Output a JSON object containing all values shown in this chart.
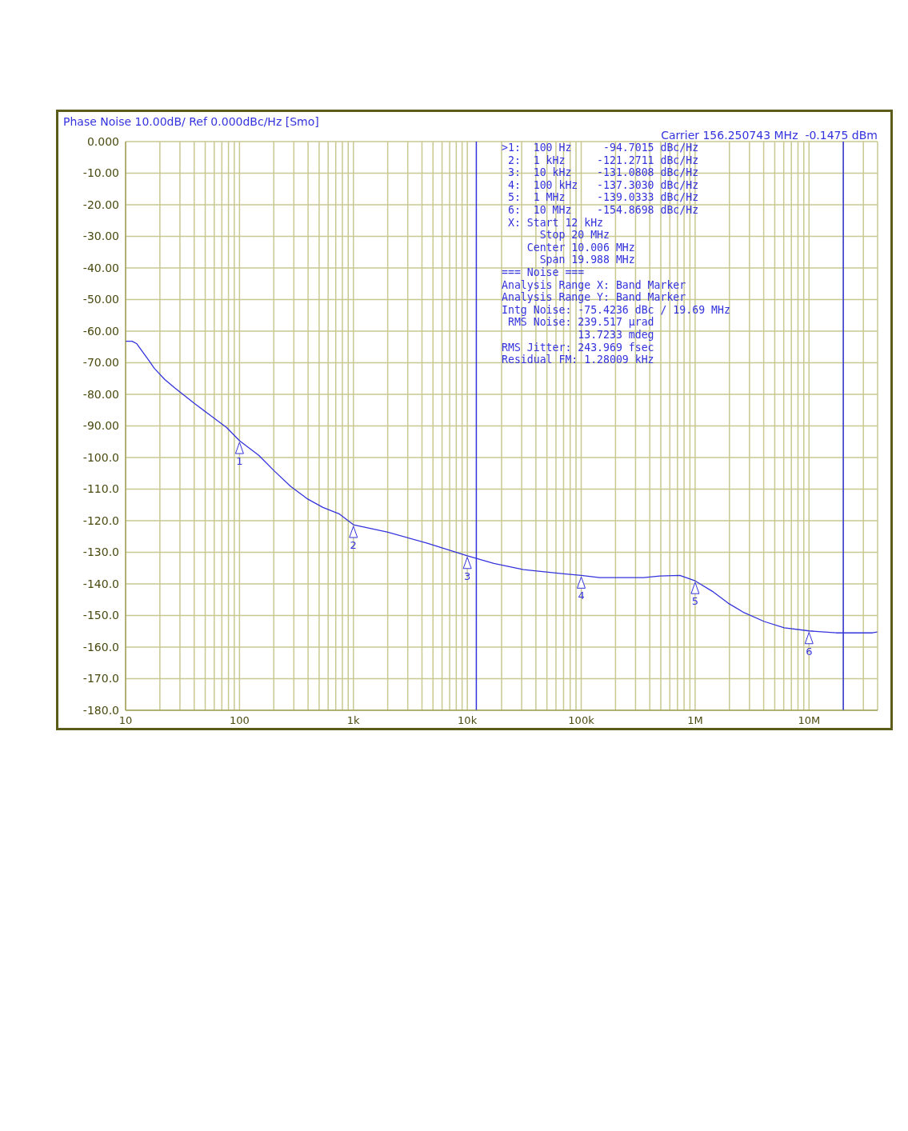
{
  "chart_data": {
    "type": "line",
    "title": "Phase Noise 10.00dB/ Ref 0.000dBc/Hz [Smo]",
    "subtitle": "Carrier 156.250743 MHz  -0.1475 dBm",
    "log": "x",
    "grid": true,
    "x": [
      10,
      11.4,
      12.55,
      14.06,
      16,
      17.9,
      22.1,
      26.9,
      40.3,
      55.7,
      77.1,
      100,
      147.6,
      204,
      282,
      391,
      540,
      747,
      1000,
      1977,
      4446,
      10000,
      17070,
      31100,
      70000,
      100000,
      145000,
      354000,
      490000,
      734000,
      1000000,
      1410000,
      1950000,
      2690000,
      4040000,
      6050000,
      10000000,
      17300000,
      36000000,
      39700000
    ],
    "series": [
      {
        "color": "#3333dd",
        "values": [
          -63.2,
          -63.2,
          -64,
          -66.5,
          -69.3,
          -71.8,
          -75.3,
          -77.9,
          -82.9,
          -86.7,
          -90.5,
          -94.7015,
          -99.3,
          -104.4,
          -109.2,
          -113,
          -115.8,
          -117.8,
          -121.2711,
          -123.6,
          -127.1,
          -131.0808,
          -133.5,
          -135.5,
          -136.8,
          -137.303,
          -138,
          -138,
          -137.5,
          -137.3,
          -139.0333,
          -142.3,
          -146.1,
          -149.1,
          -151.9,
          -153.9,
          -154.8698,
          -155.5,
          -155.5,
          -155.2
        ]
      }
    ],
    "xlim": [
      10,
      40000000
    ],
    "xticks": [
      {
        "value": 10,
        "label": "10"
      },
      {
        "value": 20,
        "label": null
      },
      {
        "value": 30,
        "label": null
      },
      {
        "value": 40,
        "label": null
      },
      {
        "value": 50,
        "label": null
      },
      {
        "value": 60,
        "label": null
      },
      {
        "value": 70,
        "label": null
      },
      {
        "value": 80,
        "label": null
      },
      {
        "value": 90,
        "label": null
      },
      {
        "value": 100,
        "label": "100"
      },
      {
        "value": 200,
        "label": null
      },
      {
        "value": 300,
        "label": null
      },
      {
        "value": 400,
        "label": null
      },
      {
        "value": 500,
        "label": null
      },
      {
        "value": 600,
        "label": null
      },
      {
        "value": 700,
        "label": null
      },
      {
        "value": 800,
        "label": null
      },
      {
        "value": 900,
        "label": null
      },
      {
        "value": 1000,
        "label": "1k"
      },
      {
        "value": 2000,
        "label": null
      },
      {
        "value": 3000,
        "label": null
      },
      {
        "value": 4000,
        "label": null
      },
      {
        "value": 5000,
        "label": null
      },
      {
        "value": 6000,
        "label": null
      },
      {
        "value": 7000,
        "label": null
      },
      {
        "value": 8000,
        "label": null
      },
      {
        "value": 9000,
        "label": null
      },
      {
        "value": 10000,
        "label": "10k"
      },
      {
        "value": 20000,
        "label": null
      },
      {
        "value": 30000,
        "label": null
      },
      {
        "value": 40000,
        "label": null
      },
      {
        "value": 50000,
        "label": null
      },
      {
        "value": 60000,
        "label": null
      },
      {
        "value": 70000,
        "label": null
      },
      {
        "value": 80000,
        "label": null
      },
      {
        "value": 90000,
        "label": null
      },
      {
        "value": 100000,
        "label": "100k"
      },
      {
        "value": 200000,
        "label": null
      },
      {
        "value": 300000,
        "label": null
      },
      {
        "value": 400000,
        "label": null
      },
      {
        "value": 500000,
        "label": null
      },
      {
        "value": 600000,
        "label": null
      },
      {
        "value": 700000,
        "label": null
      },
      {
        "value": 800000,
        "label": null
      },
      {
        "value": 900000,
        "label": null
      },
      {
        "value": 1000000,
        "label": "1M"
      },
      {
        "value": 2000000,
        "label": null
      },
      {
        "value": 3000000,
        "label": null
      },
      {
        "value": 4000000,
        "label": null
      },
      {
        "value": 5000000,
        "label": null
      },
      {
        "value": 6000000,
        "label": null
      },
      {
        "value": 7000000,
        "label": null
      },
      {
        "value": 8000000,
        "label": null
      },
      {
        "value": 9000000,
        "label": null
      },
      {
        "value": 10000000,
        "label": "10M"
      },
      {
        "value": 20000000,
        "label": null
      },
      {
        "value": 30000000,
        "label": null
      }
    ],
    "ylim": [
      -180,
      0
    ],
    "yticks": [
      {
        "value": 0,
        "label": "0.000"
      },
      {
        "value": -10,
        "label": "-10.00"
      },
      {
        "value": -20,
        "label": "-20.00"
      },
      {
        "value": -30,
        "label": "-30.00"
      },
      {
        "value": -40,
        "label": "-40.00"
      },
      {
        "value": -50,
        "label": "-50.00"
      },
      {
        "value": -60,
        "label": "-60.00"
      },
      {
        "value": -70,
        "label": "-70.00"
      },
      {
        "value": -80,
        "label": "-80.00"
      },
      {
        "value": -90,
        "label": "-90.00"
      },
      {
        "value": -100,
        "label": "-100.0"
      },
      {
        "value": -110,
        "label": "-110.0"
      },
      {
        "value": -120,
        "label": "-120.0"
      },
      {
        "value": -130,
        "label": "-130.0"
      },
      {
        "value": -140,
        "label": "-140.0"
      },
      {
        "value": -150,
        "label": "-150.0"
      },
      {
        "value": -160,
        "label": "-160.0"
      },
      {
        "value": -170,
        "label": "-170.0"
      },
      {
        "value": -180,
        "label": "-180.0"
      }
    ],
    "ref_lines": [
      {
        "axis": "x",
        "value": 12000,
        "color": "#3333dd"
      },
      {
        "axis": "x",
        "value": 20000000,
        "color": "#3333dd"
      }
    ],
    "annotations": [
      {
        "text": "1",
        "x": 100,
        "y": -94.7015
      },
      {
        "text": "2",
        "x": 1000,
        "y": -121.2711
      },
      {
        "text": "3",
        "x": 10000,
        "y": -131.0808
      },
      {
        "text": "4",
        "x": 100000,
        "y": -137.303
      },
      {
        "text": "5",
        "x": 1000000,
        "y": -139.0333
      },
      {
        "text": "6",
        "x": 10000000,
        "y": -154.8698
      },
      ">1:  100 Hz     -94.7015 dBc/Hz",
      " 2:  1 kHz     -121.2711 dBc/Hz",
      " 3:  10 kHz    -131.0808 dBc/Hz",
      " 4:  100 kHz   -137.3030 dBc/Hz",
      " 5:  1 MHz     -139.0333 dBc/Hz",
      " 6:  10 MHz    -154.8698 dBc/Hz",
      " X: Start 12 kHz",
      "      Stop 20 MHz",
      "    Center 10.006 MHz",
      "      Span 19.988 MHz",
      "=== Noise ===",
      "Analysis Range X: Band Marker",
      "Analysis Range Y: Band Marker",
      "Intg Noise: -75.4236 dBc / 19.69 MHz",
      " RMS Noise: 239.517 µrad",
      "            13.7233 mdeg",
      "RMS Jitter: 243.969 fsec",
      "Residual FM: 1.28009 kHz"
    ]
  }
}
